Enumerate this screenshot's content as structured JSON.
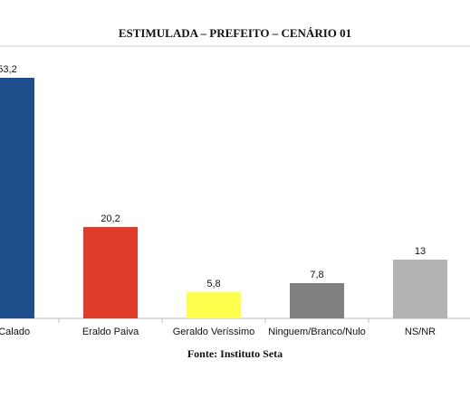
{
  "chart_data": {
    "type": "bar",
    "title": "ESTIMULADA – PREFEITO – CENÁRIO 01",
    "categories": [
      "ne Calado",
      "Eraldo Paiva",
      "Geraldo Veríssimo",
      "Ninguem/Branco/Nulo",
      "NS/NR"
    ],
    "value_labels": [
      "53,2",
      "20,2",
      "5,8",
      "7,8",
      "13"
    ],
    "values": [
      53.2,
      20.2,
      5.8,
      7.8,
      13
    ],
    "colors": [
      "#1f4e8c",
      "#e03a2a",
      "#ffff4d",
      "#808080",
      "#b3b3b3"
    ],
    "ylim": [
      0,
      60
    ],
    "xlabel": "",
    "ylabel": "",
    "grid": false,
    "legend": false
  },
  "source": "Fonte: Instituto Seta"
}
